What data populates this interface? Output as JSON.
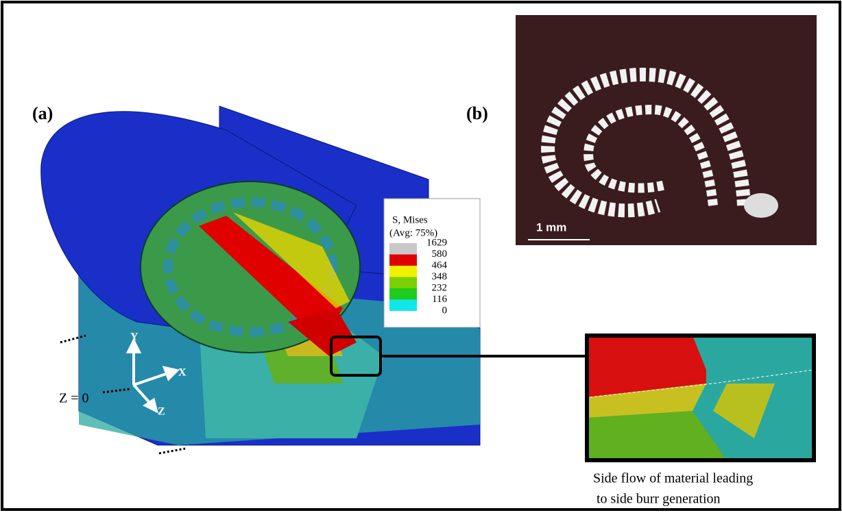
{
  "panel_a": {
    "label": "(a)",
    "legend": {
      "title": "S, Mises",
      "subtitle": "(Avg: 75%)",
      "entries": [
        {
          "value": 1629,
          "color": "#c8c8c8"
        },
        {
          "value": 580,
          "color": "#e00000"
        },
        {
          "value": 464,
          "color": "#f0f000"
        },
        {
          "value": 348,
          "color": "#7ad000"
        },
        {
          "value": 232,
          "color": "#1ecc1e"
        },
        {
          "value": 116,
          "color": "#10e8e8"
        },
        {
          "value": 0,
          "color": "#0000e0"
        }
      ]
    },
    "axes": {
      "y": "Y",
      "x": "X",
      "z": "Z",
      "plane": "Z = 0"
    }
  },
  "panel_b": {
    "label": "(b)",
    "scale_bar": "1 mm"
  },
  "caption": [
    "Side flow of material leading",
    " to side burr generation"
  ]
}
